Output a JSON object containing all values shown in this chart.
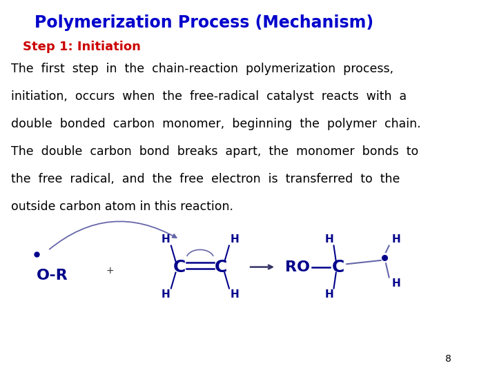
{
  "title": "Polymerization Process (Mechanism)",
  "title_color": "#0000CC",
  "title_fontsize": 17,
  "step_label": "Step 1: Initiation",
  "step_color": "#CC0000",
  "step_fontsize": 13,
  "body_lines": [
    "The  first  step  in  the  chain-reaction  polymerization  process,",
    "initiation,  occurs  when  the  free-radical  catalyst  reacts  with  a",
    "double  bonded  carbon  monomer,  beginning  the  polymer  chain.",
    "The  double  carbon  bond  breaks  apart,  the  monomer  bonds  to",
    "the  free  radical,  and  the  free  electron  is  transferred  to  the",
    "outside carbon atom in this reaction."
  ],
  "body_fontsize": 12.5,
  "body_color": "#000000",
  "chem_color": "#00008B",
  "chem_color_light": "#6666AA",
  "page_number": "8",
  "background_color": "#FFFFFF"
}
